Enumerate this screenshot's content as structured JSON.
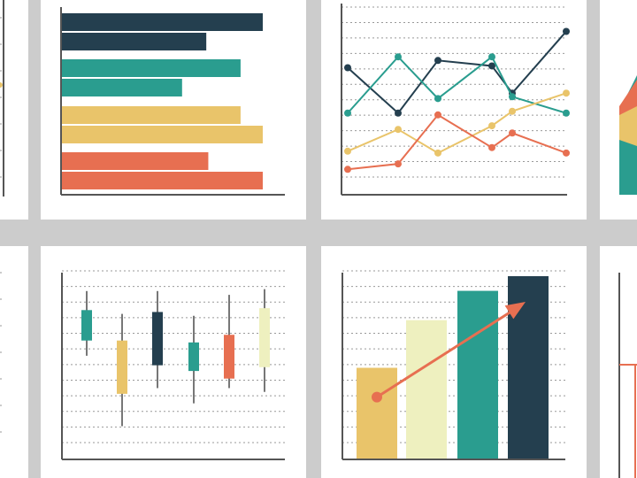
{
  "palette": {
    "navy": "#243f4f",
    "teal": "#2a9d8f",
    "yellow": "#e9c46a",
    "orange": "#e76f51",
    "cream": "#eef0bf",
    "axis": "#555555",
    "grid": "#999999",
    "wick": "#777777",
    "background": "#cccccc",
    "panel": "#ffffff"
  },
  "chart_data": [
    {
      "type": "bar",
      "orientation": "horizontal",
      "grid": false,
      "series": [
        {
          "color": "#243f4f",
          "values": [
            100,
            72
          ]
        },
        {
          "color": "#2a9d8f",
          "values": [
            89,
            60
          ]
        },
        {
          "color": "#e9c46a",
          "values": [
            89,
            100
          ]
        },
        {
          "color": "#e76f51",
          "values": [
            73,
            100
          ]
        }
      ]
    },
    {
      "type": "line",
      "grid": true,
      "ylim": [
        0,
        100
      ],
      "x": [
        1,
        2,
        3,
        4,
        5,
        6
      ],
      "series": [
        {
          "color": "#243f4f",
          "values": [
            70,
            45,
            74,
            71,
            56,
            90
          ]
        },
        {
          "color": "#2a9d8f",
          "values": [
            45,
            76,
            53,
            76,
            54,
            45
          ]
        },
        {
          "color": "#e9c46a",
          "values": [
            24,
            36,
            23,
            38,
            46,
            56
          ]
        },
        {
          "color": "#e76f51",
          "values": [
            14,
            17,
            44,
            26,
            34,
            23
          ]
        }
      ]
    },
    {
      "type": "candlestick",
      "grid": true,
      "ylim": [
        0,
        100
      ],
      "candles": [
        {
          "color": "#2a9d8f",
          "high": 88,
          "open": 78,
          "close": 62,
          "low": 54
        },
        {
          "color": "#e9c46a",
          "high": 76,
          "open": 62,
          "close": 34,
          "low": 17
        },
        {
          "color": "#243f4f",
          "high": 88,
          "open": 77,
          "close": 49,
          "low": 37
        },
        {
          "color": "#2a9d8f",
          "high": 75,
          "open": 61,
          "close": 46,
          "low": 29
        },
        {
          "color": "#e76f51",
          "high": 86,
          "open": 65,
          "close": 42,
          "low": 37
        },
        {
          "color": "#eef0bf",
          "high": 89,
          "open": 79,
          "close": 48,
          "low": 35
        }
      ]
    },
    {
      "type": "bar",
      "grid": true,
      "ylim": [
        0,
        100
      ],
      "bars": [
        {
          "color": "#e9c46a",
          "value": 50
        },
        {
          "color": "#eef0bf",
          "value": 76
        },
        {
          "color": "#2a9d8f",
          "value": 92
        },
        {
          "color": "#243f4f",
          "value": 100
        }
      ],
      "trend_arrow": {
        "color": "#e76f51",
        "from": [
          0,
          34
        ],
        "to": [
          3,
          86
        ]
      }
    }
  ]
}
